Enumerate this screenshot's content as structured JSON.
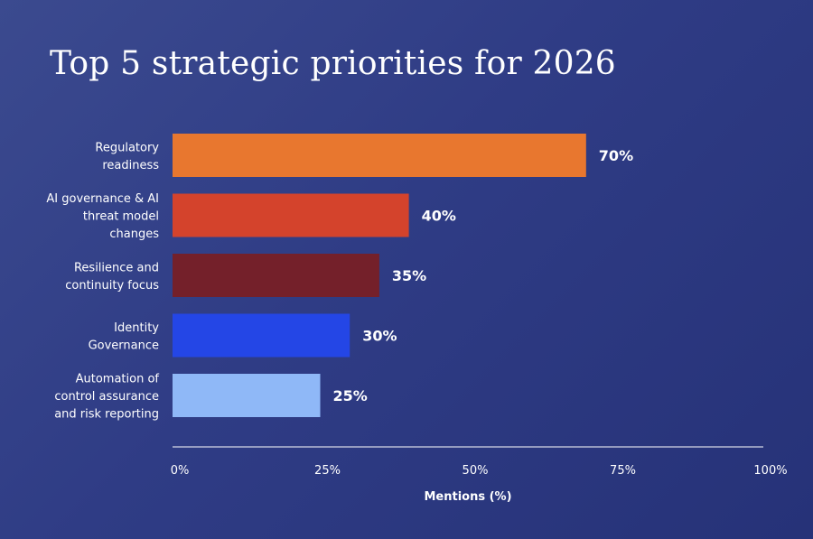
{
  "chart_data": {
    "type": "bar",
    "orientation": "horizontal",
    "title": "Top 5 strategic priorities for 2026",
    "categories": [
      [
        "Regulatory",
        "readiness"
      ],
      [
        "AI governance & AI",
        "threat model",
        "changes"
      ],
      [
        "Resilience and",
        "continuity focus"
      ],
      [
        "Identity",
        "Governance"
      ],
      [
        "Automation of",
        "control assurance",
        "and risk reporting"
      ]
    ],
    "values": [
      70,
      40,
      35,
      30,
      25
    ],
    "value_labels": [
      "70%",
      "40%",
      "35%",
      "30%",
      "25%"
    ],
    "bar_colors": [
      "#e8772f",
      "#d4432c",
      "#74202a",
      "#2446e6",
      "#8fb8f7"
    ],
    "xlabel": "Mentions (%)",
    "ylabel": "",
    "xlim": [
      0,
      100
    ],
    "x_ticks": [
      "0%",
      "25%",
      "50%",
      "75%",
      "100%"
    ],
    "grid": false,
    "legend": "none"
  },
  "colors": {
    "background_start": "#3b4a8f",
    "background_end": "#263278",
    "text": "#ffffff",
    "axis_line": "#ffffff"
  }
}
